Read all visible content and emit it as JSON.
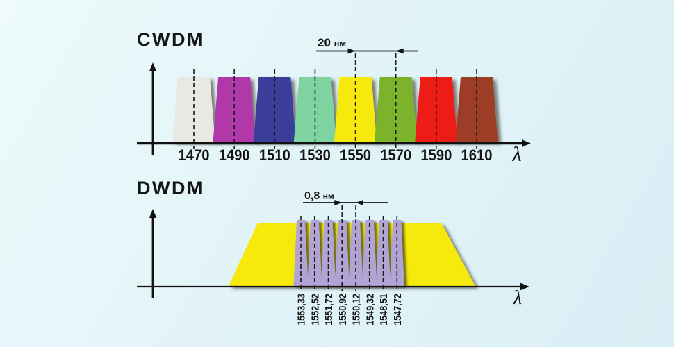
{
  "background": {
    "gradient_from": "#eefafb",
    "gradient_mid": "#e2f4f8",
    "gradient_to": "#d9eff5"
  },
  "chart_data": [
    {
      "type": "area",
      "name": "CWDM",
      "title": "CWDM",
      "xlabel": "λ",
      "ylabel": "",
      "channel_spacing_label": "20 нм",
      "channel_spacing_nm": 20,
      "channels": [
        {
          "label": "1470",
          "wavelength_nm": 1470,
          "color": "#e9e8e3"
        },
        {
          "label": "1490",
          "wavelength_nm": 1490,
          "color": "#b138a8"
        },
        {
          "label": "1510",
          "wavelength_nm": 1510,
          "color": "#3a3e9b"
        },
        {
          "label": "1530",
          "wavelength_nm": 1530,
          "color": "#7fd3a1"
        },
        {
          "label": "1550",
          "wavelength_nm": 1550,
          "color": "#f6ea10"
        },
        {
          "label": "1570",
          "wavelength_nm": 1570,
          "color": "#7cb32b"
        },
        {
          "label": "1590",
          "wavelength_nm": 1590,
          "color": "#ee1d16"
        },
        {
          "label": "1610",
          "wavelength_nm": 1610,
          "color": "#9d3e25"
        }
      ],
      "spacing_arrow_between": [
        "1550",
        "1570"
      ]
    },
    {
      "type": "area",
      "name": "DWDM",
      "title": "DWDM",
      "xlabel": "λ",
      "ylabel": "",
      "channel_spacing_label": "0,8 нм",
      "channel_spacing_nm": 0.8,
      "band_color": "#f6ea10",
      "channel_color": "#b1a4d4",
      "channels": [
        {
          "label": "1553,33",
          "wavelength_nm": 1553.33
        },
        {
          "label": "1552,52",
          "wavelength_nm": 1552.52
        },
        {
          "label": "1551,72",
          "wavelength_nm": 1551.72
        },
        {
          "label": "1550,92",
          "wavelength_nm": 1550.92
        },
        {
          "label": "1550,12",
          "wavelength_nm": 1550.12
        },
        {
          "label": "1549,32",
          "wavelength_nm": 1549.32
        },
        {
          "label": "1548,51",
          "wavelength_nm": 1548.51
        },
        {
          "label": "1547,72",
          "wavelength_nm": 1547.72
        }
      ],
      "spacing_arrow_between": [
        "1550,92",
        "1550,12"
      ]
    }
  ]
}
